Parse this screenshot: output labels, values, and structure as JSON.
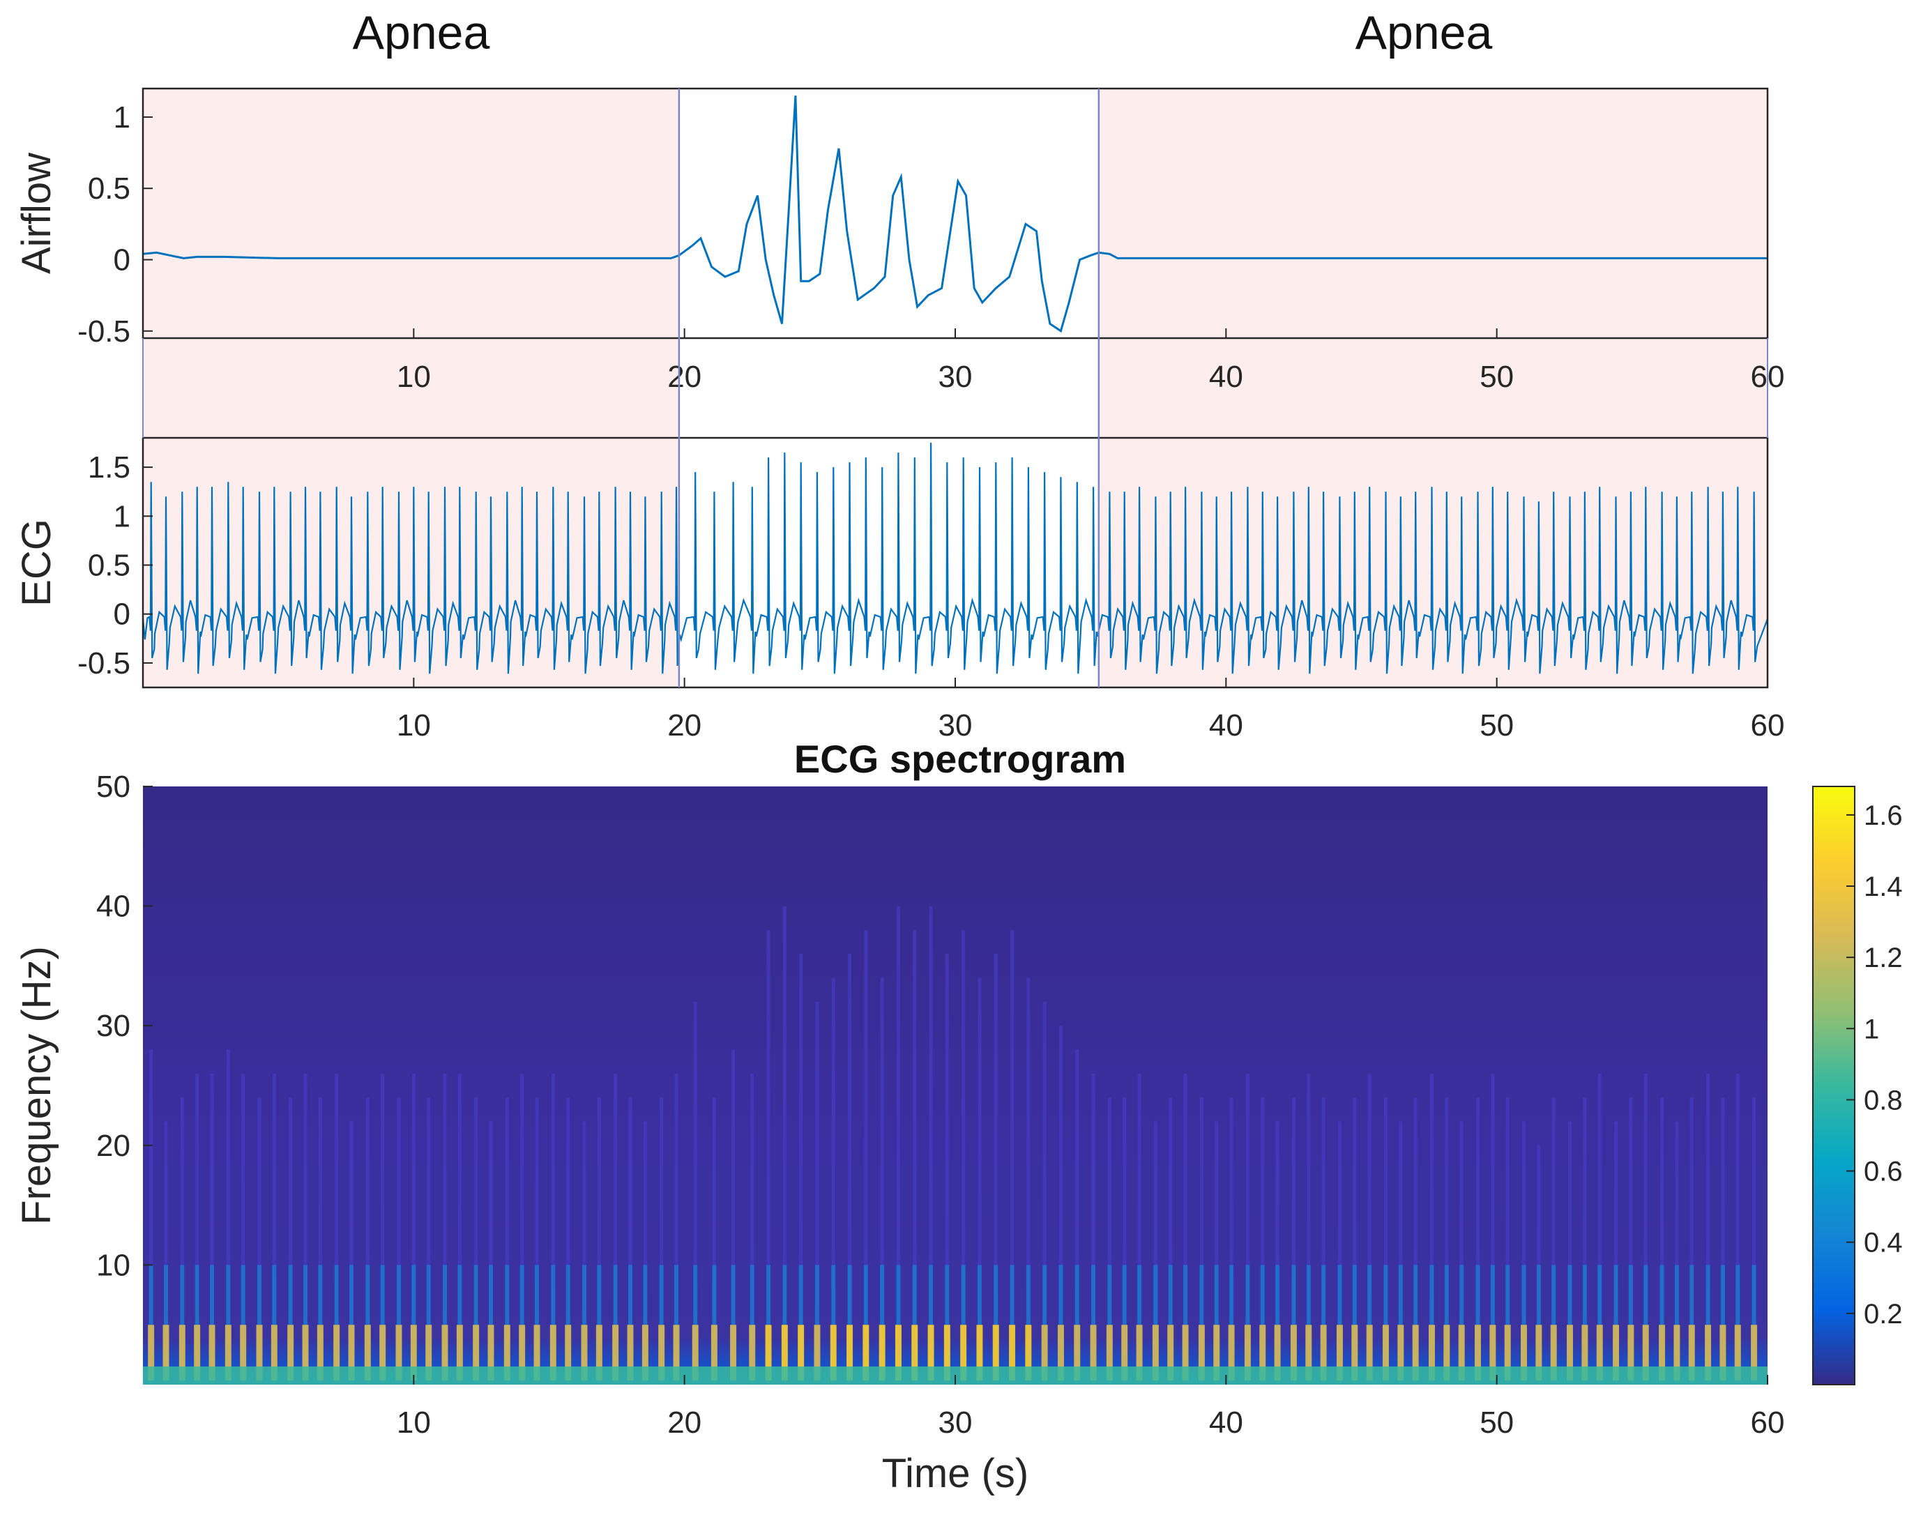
{
  "figure": {
    "time_range_s": [
      0,
      60
    ],
    "apnea_labels": [
      "Apnea",
      "Apnea"
    ],
    "colors": {
      "signal": "#0072bd",
      "apnea_shade": "#fdeded",
      "apnea_boundary": "#7a86c9",
      "axis": "#262626",
      "tick_text": "#262626",
      "background": "#ffffff"
    }
  },
  "chart_data": [
    {
      "type": "line",
      "name": "airflow",
      "ylabel": "Airflow",
      "xlim": [
        0,
        60
      ],
      "ylim": [
        -0.55,
        1.2
      ],
      "xticks": [
        10,
        20,
        30,
        40,
        50,
        60
      ],
      "yticks": [
        -0.5,
        0,
        0.5,
        1
      ],
      "ytick_labels": [
        "-0.5",
        "0",
        "0.5",
        "1"
      ],
      "apnea_intervals": [
        [
          0,
          19.8
        ],
        [
          35.3,
          60
        ]
      ],
      "series": [
        {
          "name": "Airflow",
          "x": [
            0,
            0.5,
            1,
            1.5,
            2,
            3,
            5,
            10,
            15,
            19.5,
            19.8,
            20.3,
            20.6,
            21,
            21.5,
            22,
            22.3,
            22.7,
            23,
            23.3,
            23.6,
            23.9,
            24.1,
            24.3,
            24.6,
            25,
            25.3,
            25.7,
            26,
            26.4,
            27,
            27.4,
            27.7,
            28,
            28.3,
            28.6,
            29,
            29.5,
            30.1,
            30.4,
            30.7,
            31,
            31.5,
            32,
            32.6,
            33,
            33.2,
            33.5,
            33.9,
            34.2,
            34.6,
            35,
            35.3,
            35.7,
            36,
            36.5,
            37,
            40,
            45,
            50,
            55,
            60
          ],
          "y": [
            0.04,
            0.05,
            0.03,
            0.01,
            0.02,
            0.02,
            0.01,
            0.01,
            0.01,
            0.01,
            0.03,
            0.1,
            0.15,
            -0.05,
            -0.12,
            -0.08,
            0.25,
            0.45,
            0.0,
            -0.25,
            -0.45,
            0.5,
            1.15,
            -0.15,
            -0.15,
            -0.1,
            0.35,
            0.78,
            0.2,
            -0.28,
            -0.2,
            -0.12,
            0.45,
            0.58,
            0.0,
            -0.33,
            -0.25,
            -0.2,
            0.55,
            0.45,
            -0.2,
            -0.3,
            -0.2,
            -0.12,
            0.25,
            0.2,
            -0.15,
            -0.45,
            -0.5,
            -0.3,
            0.0,
            0.03,
            0.05,
            0.04,
            0.01,
            0.01,
            0.01,
            0.01,
            0.01,
            0.01,
            0.01,
            0.01
          ]
        }
      ]
    },
    {
      "type": "line",
      "name": "ecg",
      "ylabel": "ECG",
      "xlim": [
        0,
        60
      ],
      "ylim": [
        -0.75,
        1.8
      ],
      "xticks": [
        10,
        20,
        30,
        40,
        50,
        60
      ],
      "yticks": [
        -0.5,
        0,
        0.5,
        1,
        1.5
      ],
      "ytick_labels": [
        "-0.5",
        "0",
        "0.5",
        "1",
        "1.5"
      ],
      "apnea_intervals": [
        [
          0,
          19.8
        ],
        [
          35.3,
          60
        ]
      ],
      "series": [
        {
          "name": "ECG",
          "beat_times_s": [
            0.3,
            0.85,
            1.45,
            2.0,
            2.55,
            3.15,
            3.7,
            4.3,
            4.85,
            5.45,
            6.0,
            6.55,
            7.15,
            7.7,
            8.3,
            8.85,
            9.45,
            10.0,
            10.55,
            11.15,
            11.7,
            12.3,
            12.85,
            13.45,
            14.0,
            14.55,
            15.15,
            15.7,
            16.3,
            16.85,
            17.45,
            18.0,
            18.55,
            19.15,
            19.7,
            20.4,
            21.1,
            21.8,
            22.5,
            23.1,
            23.7,
            24.3,
            24.9,
            25.5,
            26.1,
            26.7,
            27.3,
            27.9,
            28.5,
            29.1,
            29.7,
            30.3,
            30.9,
            31.5,
            32.1,
            32.7,
            33.3,
            33.9,
            34.5,
            35.1,
            35.7,
            36.25,
            36.8,
            37.4,
            37.95,
            38.5,
            39.1,
            39.65,
            40.2,
            40.8,
            41.35,
            41.9,
            42.5,
            43.05,
            43.6,
            44.2,
            44.75,
            45.3,
            45.9,
            46.45,
            47.0,
            47.6,
            48.15,
            48.7,
            49.3,
            49.85,
            50.4,
            51.0,
            51.55,
            52.1,
            52.7,
            53.25,
            53.8,
            54.4,
            54.95,
            55.5,
            56.1,
            56.65,
            57.2,
            57.8,
            58.35,
            58.9,
            59.5
          ],
          "r_peak_amplitudes": [
            1.35,
            1.2,
            1.25,
            1.3,
            1.3,
            1.35,
            1.3,
            1.25,
            1.3,
            1.25,
            1.3,
            1.25,
            1.3,
            1.2,
            1.25,
            1.3,
            1.25,
            1.3,
            1.25,
            1.3,
            1.3,
            1.25,
            1.2,
            1.25,
            1.3,
            1.25,
            1.3,
            1.25,
            1.2,
            1.25,
            1.3,
            1.25,
            1.2,
            1.25,
            1.3,
            1.45,
            1.25,
            1.35,
            1.3,
            1.6,
            1.65,
            1.55,
            1.45,
            1.5,
            1.55,
            1.6,
            1.5,
            1.65,
            1.6,
            1.75,
            1.55,
            1.6,
            1.5,
            1.55,
            1.6,
            1.5,
            1.45,
            1.4,
            1.35,
            1.3,
            1.25,
            1.25,
            1.3,
            1.2,
            1.25,
            1.3,
            1.25,
            1.2,
            1.25,
            1.3,
            1.25,
            1.2,
            1.25,
            1.3,
            1.25,
            1.2,
            1.25,
            1.3,
            1.25,
            1.2,
            1.25,
            1.3,
            1.25,
            1.2,
            1.25,
            1.3,
            1.25,
            1.2,
            1.15,
            1.25,
            1.2,
            1.25,
            1.3,
            1.2,
            1.25,
            1.3,
            1.25,
            1.2,
            1.25,
            1.3,
            1.25,
            1.3,
            1.25
          ],
          "s_trough_amplitude": -0.45,
          "baseline": -0.05
        }
      ]
    },
    {
      "type": "heatmap",
      "name": "ecg-spectrogram",
      "title": "ECG spectrogram",
      "xlabel": "Time (s)",
      "ylabel": "Frequency (Hz)",
      "xlim": [
        0,
        60
      ],
      "ylim": [
        0,
        50
      ],
      "xticks": [
        10,
        20,
        30,
        40,
        50,
        60
      ],
      "yticks": [
        10,
        20,
        30,
        40,
        50
      ],
      "colorbar": {
        "range": [
          0,
          1.68
        ],
        "ticks": [
          0.2,
          0.4,
          0.6,
          0.8,
          1,
          1.2,
          1.4,
          1.6
        ],
        "tick_labels": [
          "0.2",
          "0.4",
          "0.6",
          "0.8",
          "1",
          "1.2",
          "1.4",
          "1.6"
        ],
        "colormap": "parula",
        "colormap_stops": [
          "#352a87",
          "#0363e1",
          "#1485d4",
          "#06a7c6",
          "#38b99e",
          "#92bf73",
          "#d9ba56",
          "#fcce2e",
          "#f9fb0e"
        ]
      },
      "dominant_energy_band_hz": [
        0.5,
        5
      ],
      "peak_value": 1.65
    }
  ]
}
